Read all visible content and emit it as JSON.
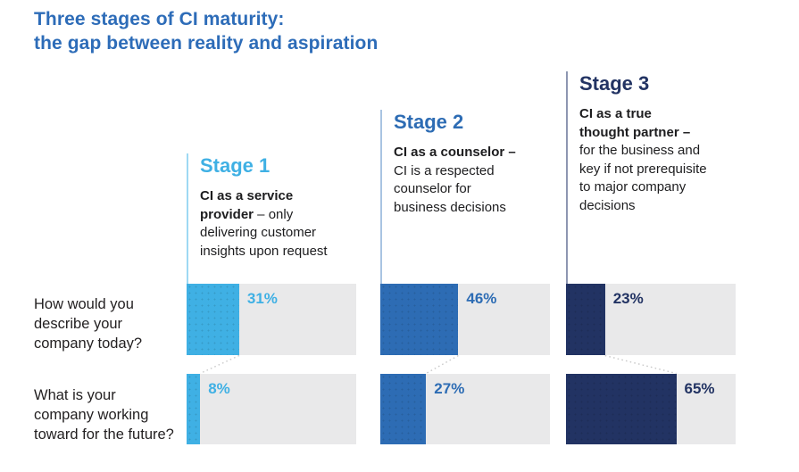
{
  "title": "Three stages of CI maturity:\nthe gap between reality and aspiration",
  "colors": {
    "title_color": "#2d6cb8",
    "track_gray": "#e9e9ea",
    "connector_gray": "#c9c9c9",
    "question_text": "#221f20"
  },
  "questions": [
    {
      "text": "How would you\ndescribe your\ncompany today?"
    },
    {
      "text": "What is your\ncompany working\ntoward for the future?"
    }
  ],
  "stages": [
    {
      "name": "Stage 1",
      "desc_bold": "CI as a service\nprovider",
      "desc_rest": " – only\ndelivering customer\ninsights upon request",
      "accent": "#3fb0e4",
      "accent_soft": "#9ed9f3",
      "today_pct": 31,
      "today_label": "31%",
      "future_pct": 8,
      "future_label": "8%"
    },
    {
      "name": "Stage 2",
      "desc_bold": "CI as a counselor –",
      "desc_rest": "\nCI is a respected\ncounselor for\nbusiness decisions",
      "accent": "#2d6cb4",
      "accent_soft": "#a9c4e2",
      "today_pct": 46,
      "today_label": "46%",
      "future_pct": 27,
      "future_label": "27%"
    },
    {
      "name": "Stage 3",
      "desc_bold": "CI as a true\nthought partner –",
      "desc_rest": "\nfor the business and\nkey if not prerequisite\nto major company\ndecisions",
      "accent": "#223363",
      "accent_soft": "#8d96b1",
      "today_pct": 23,
      "today_label": "23%",
      "future_pct": 65,
      "future_label": "65%"
    }
  ],
  "chart_data": {
    "type": "bar",
    "orientation": "horizontal",
    "title": "Three stages of CI maturity: the gap between reality and aspiration",
    "categories": [
      "Stage 1: CI as a service provider – only delivering customer insights upon request",
      "Stage 2: CI as a counselor – CI is a respected counselor for business decisions",
      "Stage 3: CI as a true thought partner – for the business and key if not prerequisite to major company decisions"
    ],
    "series": [
      {
        "name": "How would you describe your company today?",
        "values": [
          31,
          46,
          23
        ]
      },
      {
        "name": "What is your company working toward for the future?",
        "values": [
          8,
          27,
          65
        ]
      }
    ],
    "unit": "%",
    "xlim": [
      0,
      100
    ],
    "grid": false,
    "legend_position": "row-labels-left",
    "bar_colors": [
      "#3fb0e4",
      "#2d6cb4",
      "#223363"
    ],
    "track_color": "#e9e9ea"
  }
}
